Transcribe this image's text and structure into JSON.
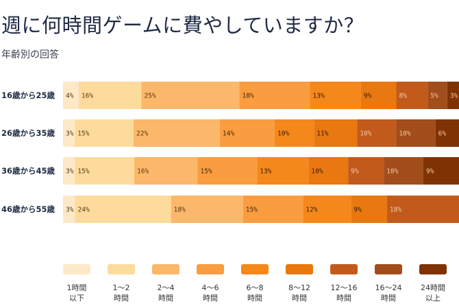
{
  "header": {
    "title": "週に何時間ゲームに費やしていますか？",
    "subtitle": "年齢別の回答"
  },
  "chart_data": {
    "type": "bar",
    "orientation": "horizontal",
    "stacked": true,
    "title": "週に何時間ゲームに費やしていますか？",
    "subtitle": "年齢別の回答",
    "categories": [
      "16歳から25歳",
      "26歳から35歳",
      "36歳から45歳",
      "46歳から55歳"
    ],
    "series": [
      {
        "name": "1時間以下",
        "color": "#fde9c8",
        "label_color": "#5a3a10",
        "values": [
          4,
          3,
          3,
          3
        ]
      },
      {
        "name": "1〜2時間",
        "color": "#fddb9c",
        "label_color": "#5a3a10",
        "values": [
          16,
          15,
          15,
          24
        ]
      },
      {
        "name": "2〜4時間",
        "color": "#fbb76a",
        "label_color": "#5a3a10",
        "values": [
          25,
          22,
          16,
          18
        ]
      },
      {
        "name": "4〜6時間",
        "color": "#f99d40",
        "label_color": "#4a2a08",
        "values": [
          18,
          14,
          15,
          15
        ]
      },
      {
        "name": "6〜8時間",
        "color": "#f5881b",
        "label_color": "#3a2006",
        "values": [
          13,
          10,
          13,
          12
        ]
      },
      {
        "name": "8〜12時間",
        "color": "#e8780f",
        "label_color": "#3a2006",
        "values": [
          9,
          11,
          10,
          9
        ]
      },
      {
        "name": "12〜16時間",
        "color": "#c25a1c",
        "label_color": "#f3c8a0",
        "values": [
          8,
          10,
          9,
          18
        ]
      },
      {
        "name": "16〜24時間",
        "color": "#a24d1c",
        "label_color": "#f3c8a0",
        "values": [
          5,
          10,
          10,
          0
        ]
      },
      {
        "name": "24時間以上",
        "color": "#7f3305",
        "label_color": "#f3c8a0",
        "values": [
          3,
          6,
          9,
          0
        ]
      }
    ],
    "legend": {
      "position": "bottom",
      "labels": [
        [
          "1時間",
          "以下"
        ],
        [
          "1〜2",
          "時間"
        ],
        [
          "2〜4",
          "時間"
        ],
        [
          "4〜6",
          "時間"
        ],
        [
          "6〜8",
          "時間"
        ],
        [
          "8〜12",
          "時間"
        ],
        [
          "12〜16",
          "時間"
        ],
        [
          "16〜24",
          "時間"
        ],
        [
          "24時間",
          "以上"
        ]
      ]
    },
    "grid": false
  }
}
